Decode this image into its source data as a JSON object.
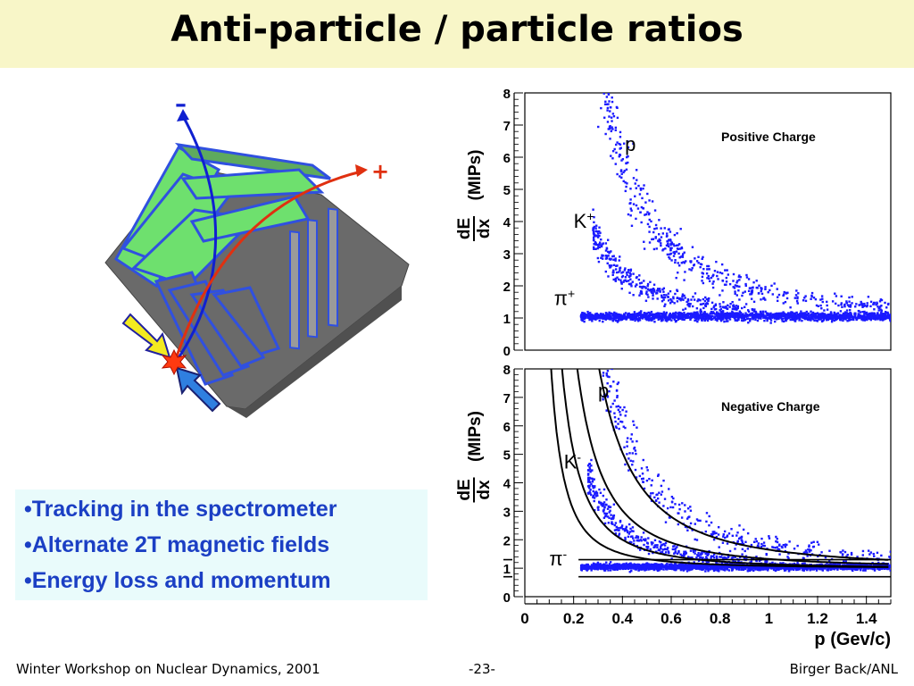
{
  "title": "Anti-particle / particle ratios",
  "bullets": [
    "•Tracking in the spectrometer",
    "•Alternate 2T magnetic fields",
    "•Energy loss and momentum"
  ],
  "footer": {
    "left": "Winter Workshop on Nuclear Dynamics, 2001",
    "center": "-23-",
    "right": "Birger Back/ANL"
  },
  "diagram": {
    "minus_sign": "–",
    "plus_sign": "+"
  },
  "colors": {
    "title_bg": "#f8f6c8",
    "points": "#1a1aff",
    "neg_track": "#1020d0",
    "pos_track": "#e03010",
    "bullet_text": "#1b3fc4"
  },
  "chart_data": [
    {
      "type": "scatter",
      "panel": "top",
      "annotation": "Positive Charge",
      "ylabel_lines": [
        "dE",
        "dx",
        "(MIPs)"
      ],
      "xlim": [
        0,
        1.5
      ],
      "ylim": [
        0,
        8
      ],
      "yticks": [
        "0",
        "1",
        "2",
        "3",
        "4",
        "5",
        "6",
        "7",
        "8"
      ],
      "band_labels": [
        {
          "text": "p",
          "x": 0.41,
          "y": 6.2
        },
        {
          "text": "K+",
          "x": 0.2,
          "y": 3.8
        },
        {
          "text": "π+",
          "x": 0.12,
          "y": 1.4
        }
      ],
      "series": [
        {
          "particle": "pi",
          "p_range": [
            0.23,
            1.5
          ],
          "center": 1.05,
          "spread": 0.09,
          "n": 1700
        },
        {
          "particle": "K",
          "p_range": [
            0.28,
            0.95
          ],
          "mass": 0.494,
          "spread": 0.12,
          "n": 350
        },
        {
          "particle": "p",
          "p_range": [
            0.3,
            1.5
          ],
          "mass": 0.938,
          "spread": 0.14,
          "n": 520
        }
      ]
    },
    {
      "type": "scatter",
      "panel": "bottom",
      "annotation": "Negative Charge",
      "xlabel": "p (Gev/c)",
      "ylabel_lines": [
        "dE",
        "dx",
        "(MIPs)"
      ],
      "xlim": [
        0,
        1.5
      ],
      "ylim": [
        0,
        8
      ],
      "xticks": [
        "0",
        "0.2",
        "0.4",
        "0.6",
        "0.8",
        "1",
        "1.2",
        "1.4"
      ],
      "yticks": [
        "0",
        "1",
        "2",
        "3",
        "4",
        "5",
        "6",
        "7",
        "8"
      ],
      "band_labels": [
        {
          "text": "p",
          "x": 0.3,
          "y": 7.0
        },
        {
          "text": "K-",
          "x": 0.16,
          "y": 4.5
        },
        {
          "text": "π-",
          "x": 0.1,
          "y": 1.1
        }
      ],
      "series": [
        {
          "particle": "pi",
          "p_range": [
            0.23,
            1.5
          ],
          "center": 1.05,
          "spread": 0.08,
          "n": 1900
        },
        {
          "particle": "K",
          "p_range": [
            0.26,
            1.0
          ],
          "mass": 0.494,
          "spread": 0.12,
          "n": 380
        },
        {
          "particle": "p",
          "p_range": [
            0.32,
            1.5
          ],
          "mass": 0.938,
          "spread": 0.14,
          "n": 360
        }
      ],
      "cut_curves": [
        {
          "mass": 0.3,
          "scale": 1.0
        },
        {
          "mass": 0.43,
          "scale": 0.98
        },
        {
          "mass": 0.6,
          "scale": 1.0
        },
        {
          "mass": 0.85,
          "scale": 1.0
        }
      ],
      "pion_cut_lines": [
        1.3,
        0.7
      ]
    }
  ]
}
